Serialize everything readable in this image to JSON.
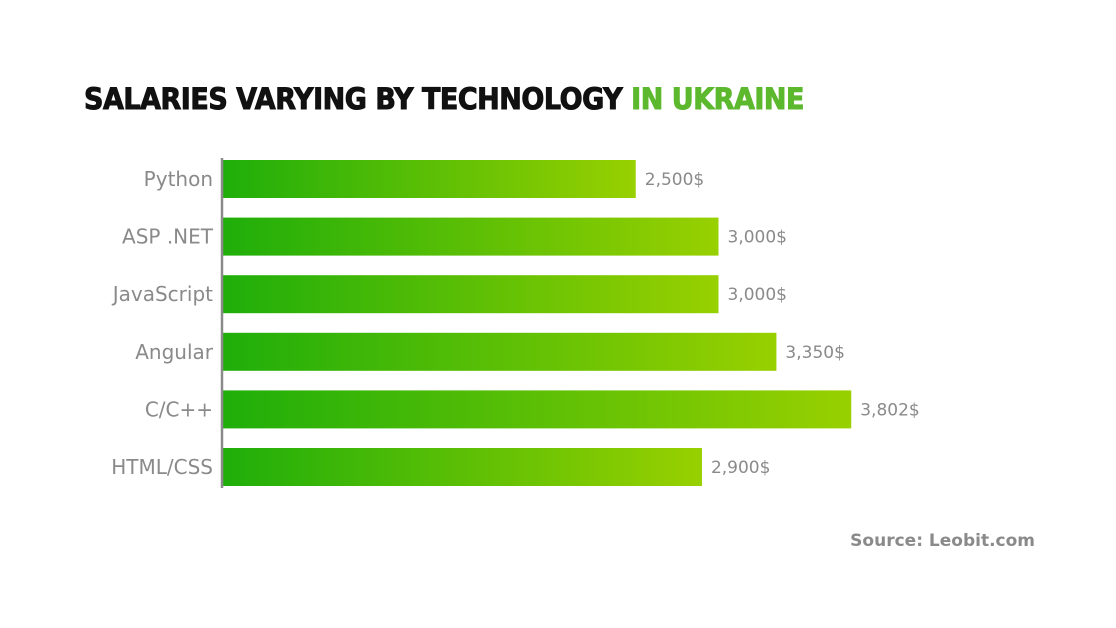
{
  "chart_data": {
    "type": "bar",
    "orientation": "horizontal",
    "title": "SALARIES VARYING BY TECHNOLOGY",
    "title_highlight": "IN UKRAINE",
    "categories": [
      "Python",
      "ASP .NET",
      "JavaScript",
      "Angular",
      "C/C++",
      "HTML/CSS"
    ],
    "values": [
      2500,
      3000,
      3000,
      3350,
      3802,
      2900
    ],
    "value_labels": [
      "2,500$",
      "3,000$",
      "3,000$",
      "3,350$",
      "3,802$",
      "2,900$"
    ],
    "xlabel": "",
    "ylabel": "",
    "xlim": [
      0,
      4000
    ],
    "grid": false,
    "colors": {
      "gradient_start": "#1fae0a",
      "gradient_end": "#98d000",
      "highlight": "#5cb82c"
    }
  },
  "source": "Source: Leobit.com"
}
